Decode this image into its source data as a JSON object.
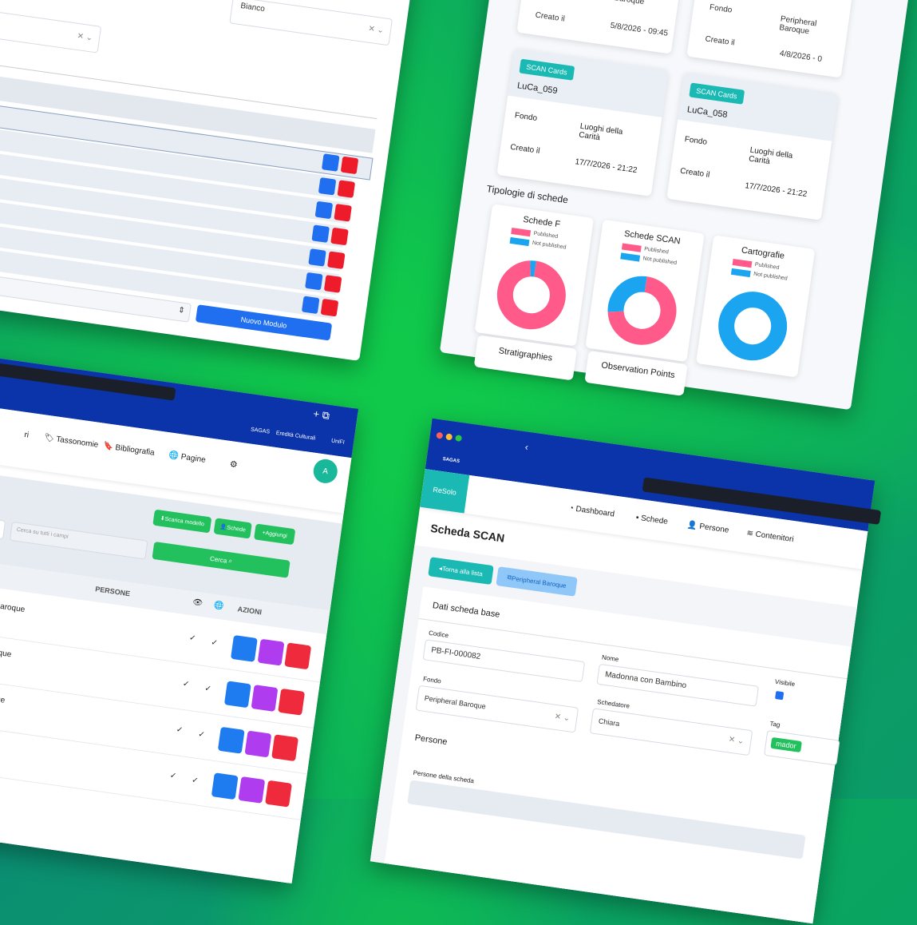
{
  "form_window": {
    "select_value": "Bianco",
    "button": "Nuovo Modulo"
  },
  "dashboard_window": {
    "recent": [
      {
        "fondo": "Baroque",
        "created_label": "Creato il",
        "created": "5/8/2026 - 09:45"
      },
      {
        "fondo_label": "Fondo",
        "fondo": "Peripheral Baroque",
        "created_label": "Creato il",
        "created": "4/8/2026 - 0"
      }
    ],
    "cards": [
      {
        "badge": "SCAN Cards",
        "code": "LuCa_059",
        "fondo_label": "Fondo",
        "fondo": "Luoghi della Carità",
        "created_label": "Creato il",
        "created": "17/7/2026 - 21:22"
      },
      {
        "badge": "SCAN Cards",
        "code": "LuCa_058",
        "fondo_label": "Fondo",
        "fondo": "Luoghi della Carità",
        "created_label": "Creato il",
        "created": "17/7/2026 - 21:22"
      }
    ],
    "section_title": "Tipologie di schede",
    "more_sections": [
      "Stratigraphies",
      "Observation Points"
    ]
  },
  "chart_data": [
    {
      "type": "pie",
      "donut": true,
      "title": "Schede F",
      "categories": [
        "Published",
        "Not published"
      ],
      "values": [
        97,
        3
      ],
      "colors": [
        "#ff5a8a",
        "#1ba5f0"
      ]
    },
    {
      "type": "pie",
      "donut": true,
      "title": "Schede SCAN",
      "categories": [
        "Published",
        "Not published"
      ],
      "values": [
        72,
        28
      ],
      "colors": [
        "#ff5a8a",
        "#1ba5f0"
      ]
    },
    {
      "type": "pie",
      "donut": true,
      "title": "Cartografie",
      "categories": [
        "Published",
        "Not published"
      ],
      "values": [
        0,
        100
      ],
      "colors": [
        "#ff5a8a",
        "#1ba5f0"
      ]
    }
  ],
  "list_window": {
    "nav": [
      "ri",
      "Tassonomie",
      "Bibliografia",
      "Pagine"
    ],
    "top_links": [
      "SAGAS",
      "Eredità Culturali",
      "UniFI"
    ],
    "avatar": "A",
    "buttons": [
      "Scarica modello",
      "Schede",
      "Aggiungi"
    ],
    "search_placeholder": "Cerca su tutti i campi",
    "search_button": "Cerca",
    "headers": [
      "PERSONE",
      "AZIONI"
    ],
    "rows": [
      "aroque",
      "oque",
      "oque",
      "e"
    ]
  },
  "detail_window": {
    "logo": "SAGAS",
    "brand": "ReSolo",
    "nav": [
      "Dashboard",
      "Schede",
      "Persone",
      "Contenitori"
    ],
    "title": "Scheda SCAN",
    "back_button": "Torna alla lista",
    "link_button": "Peripheral Baroque",
    "section": "Dati scheda base",
    "fields": {
      "code_label": "Codice",
      "code": "PB-FI-000082",
      "name_label": "Nome",
      "name": "Madonna con Bambino",
      "visible_label": "Visibile",
      "fondo_label": "Fondo",
      "fondo": "Peripheral Baroque",
      "cataloguer_label": "Schedatore",
      "cataloguer": "Chiara",
      "tag_label": "Tag",
      "tag": "mador"
    },
    "people_section": "Persone",
    "people_label": "Persone della scheda"
  }
}
